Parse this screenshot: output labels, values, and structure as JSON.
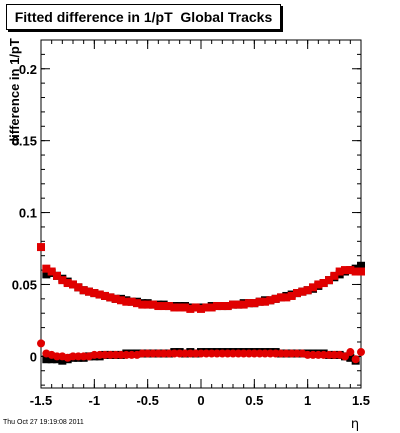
{
  "chart_data": {
    "type": "scatter",
    "title": "Fitted difference in 1/pT  Global Tracks",
    "xlabel": "η",
    "ylabel": "difference in 1/pT",
    "xlim": [
      -1.5,
      1.5
    ],
    "ylim": [
      -0.022,
      0.22
    ],
    "xticks": [
      "-1.5",
      "-1",
      "-0.5",
      "0",
      "0.5",
      "1",
      "1.5"
    ],
    "yticks": [
      "0",
      "0.05",
      "0.1",
      "0.15",
      "0.2"
    ],
    "grid": false,
    "series": [
      {
        "marker": "square",
        "color": "#000000",
        "x": [
          -1.45,
          -1.4,
          -1.35,
          -1.3,
          -1.25,
          -1.2,
          -1.15,
          -1.1,
          -1.05,
          -1.0,
          -0.95,
          -0.9,
          -0.85,
          -0.8,
          -0.75,
          -0.7,
          -0.65,
          -0.6,
          -0.55,
          -0.5,
          -0.45,
          -0.4,
          -0.35,
          -0.3,
          -0.25,
          -0.2,
          -0.15,
          -0.1,
          -0.05,
          0.0,
          0.05,
          0.1,
          0.15,
          0.2,
          0.25,
          0.3,
          0.35,
          0.4,
          0.45,
          0.5,
          0.55,
          0.6,
          0.65,
          0.7,
          0.75,
          0.8,
          0.85,
          0.9,
          0.95,
          1.0,
          1.05,
          1.1,
          1.15,
          1.2,
          1.25,
          1.3,
          1.35,
          1.4,
          1.45,
          1.5
        ],
        "y": [
          0.057,
          0.058,
          0.056,
          0.054,
          0.052,
          0.05,
          0.048,
          0.046,
          0.045,
          0.044,
          0.043,
          0.042,
          0.041,
          0.04,
          0.04,
          0.039,
          0.038,
          0.038,
          0.037,
          0.037,
          0.036,
          0.036,
          0.036,
          0.035,
          0.035,
          0.035,
          0.035,
          0.034,
          0.034,
          0.034,
          0.034,
          0.035,
          0.035,
          0.035,
          0.035,
          0.036,
          0.036,
          0.037,
          0.037,
          0.037,
          0.038,
          0.039,
          0.039,
          0.04,
          0.041,
          0.042,
          0.043,
          0.044,
          0.045,
          0.046,
          0.047,
          0.049,
          0.051,
          0.053,
          0.055,
          0.057,
          0.059,
          0.06,
          0.061,
          0.063
        ]
      },
      {
        "marker": "square",
        "color": "#e00000",
        "x": [
          -1.5,
          -1.45,
          -1.4,
          -1.35,
          -1.3,
          -1.25,
          -1.2,
          -1.15,
          -1.1,
          -1.05,
          -1.0,
          -0.95,
          -0.9,
          -0.85,
          -0.8,
          -0.75,
          -0.7,
          -0.65,
          -0.6,
          -0.55,
          -0.5,
          -0.45,
          -0.4,
          -0.35,
          -0.3,
          -0.25,
          -0.2,
          -0.15,
          -0.1,
          -0.05,
          0.0,
          0.05,
          0.1,
          0.15,
          0.2,
          0.25,
          0.3,
          0.35,
          0.4,
          0.45,
          0.5,
          0.55,
          0.6,
          0.65,
          0.7,
          0.75,
          0.8,
          0.85,
          0.9,
          0.95,
          1.0,
          1.05,
          1.1,
          1.15,
          1.2,
          1.25,
          1.3,
          1.35,
          1.4,
          1.45,
          1.5
        ],
        "y": [
          0.076,
          0.061,
          0.059,
          0.056,
          0.053,
          0.051,
          0.05,
          0.048,
          0.046,
          0.045,
          0.044,
          0.043,
          0.042,
          0.041,
          0.04,
          0.039,
          0.038,
          0.038,
          0.037,
          0.036,
          0.036,
          0.036,
          0.035,
          0.035,
          0.035,
          0.034,
          0.034,
          0.034,
          0.033,
          0.034,
          0.033,
          0.034,
          0.034,
          0.035,
          0.035,
          0.035,
          0.036,
          0.036,
          0.036,
          0.037,
          0.037,
          0.038,
          0.038,
          0.039,
          0.04,
          0.041,
          0.041,
          0.042,
          0.044,
          0.045,
          0.046,
          0.048,
          0.05,
          0.051,
          0.053,
          0.056,
          0.059,
          0.06,
          0.06,
          0.059,
          0.059
        ]
      },
      {
        "marker": "square",
        "color": "#000000",
        "x": [
          -1.45,
          -1.4,
          -1.35,
          -1.3,
          -1.25,
          -1.2,
          -1.15,
          -1.1,
          -1.05,
          -1.0,
          -0.95,
          -0.9,
          -0.85,
          -0.8,
          -0.75,
          -0.7,
          -0.65,
          -0.6,
          -0.55,
          -0.5,
          -0.45,
          -0.4,
          -0.35,
          -0.3,
          -0.25,
          -0.2,
          -0.15,
          -0.1,
          -0.05,
          0.0,
          0.05,
          0.1,
          0.15,
          0.2,
          0.25,
          0.3,
          0.35,
          0.4,
          0.45,
          0.5,
          0.55,
          0.6,
          0.65,
          0.7,
          0.75,
          0.8,
          0.85,
          0.9,
          0.95,
          1.0,
          1.05,
          1.1,
          1.15,
          1.2,
          1.25,
          1.3,
          1.35,
          1.4,
          1.45
        ],
        "y": [
          -0.002,
          -0.002,
          -0.002,
          -0.003,
          -0.002,
          -0.001,
          -0.001,
          -0.001,
          0.0,
          0.0,
          0.0,
          0.001,
          0.001,
          0.001,
          0.001,
          0.002,
          0.002,
          0.002,
          0.002,
          0.002,
          0.002,
          0.002,
          0.002,
          0.002,
          0.003,
          0.003,
          0.002,
          0.003,
          0.002,
          0.003,
          0.003,
          0.003,
          0.003,
          0.003,
          0.003,
          0.003,
          0.003,
          0.003,
          0.003,
          0.003,
          0.003,
          0.003,
          0.003,
          0.003,
          0.002,
          0.002,
          0.002,
          0.002,
          0.002,
          0.002,
          0.002,
          0.002,
          0.002,
          0.001,
          0.001,
          0.001,
          0.0,
          -0.001,
          -0.003
        ]
      },
      {
        "marker": "circle",
        "color": "#e00000",
        "x": [
          -1.5,
          -1.45,
          -1.4,
          -1.35,
          -1.3,
          -1.25,
          -1.2,
          -1.15,
          -1.1,
          -1.05,
          -1.0,
          -0.95,
          -0.9,
          -0.85,
          -0.8,
          -0.75,
          -0.7,
          -0.65,
          -0.6,
          -0.55,
          -0.5,
          -0.45,
          -0.4,
          -0.35,
          -0.3,
          -0.25,
          -0.2,
          -0.15,
          -0.1,
          -0.05,
          0.0,
          0.05,
          0.1,
          0.15,
          0.2,
          0.25,
          0.3,
          0.35,
          0.4,
          0.45,
          0.5,
          0.55,
          0.6,
          0.65,
          0.7,
          0.75,
          0.8,
          0.85,
          0.9,
          0.95,
          1.0,
          1.05,
          1.1,
          1.15,
          1.2,
          1.25,
          1.3,
          1.35,
          1.4,
          1.45,
          1.5
        ],
        "y": [
          0.009,
          0.002,
          0.001,
          0.0,
          0.0,
          -0.001,
          0.0,
          0.0,
          0.0,
          0.0,
          0.001,
          0.001,
          0.001,
          0.001,
          0.001,
          0.001,
          0.001,
          0.001,
          0.001,
          0.002,
          0.002,
          0.002,
          0.002,
          0.002,
          0.002,
          0.002,
          0.002,
          0.002,
          0.002,
          0.002,
          0.002,
          0.002,
          0.002,
          0.002,
          0.002,
          0.002,
          0.002,
          0.002,
          0.002,
          0.002,
          0.002,
          0.002,
          0.002,
          0.002,
          0.002,
          0.002,
          0.002,
          0.002,
          0.002,
          0.002,
          0.001,
          0.001,
          0.001,
          0.001,
          0.001,
          0.001,
          0.001,
          0.0,
          0.003,
          -0.002,
          0.003
        ]
      }
    ]
  },
  "footer_text": "Thu Oct 27 19:19:08 2011"
}
